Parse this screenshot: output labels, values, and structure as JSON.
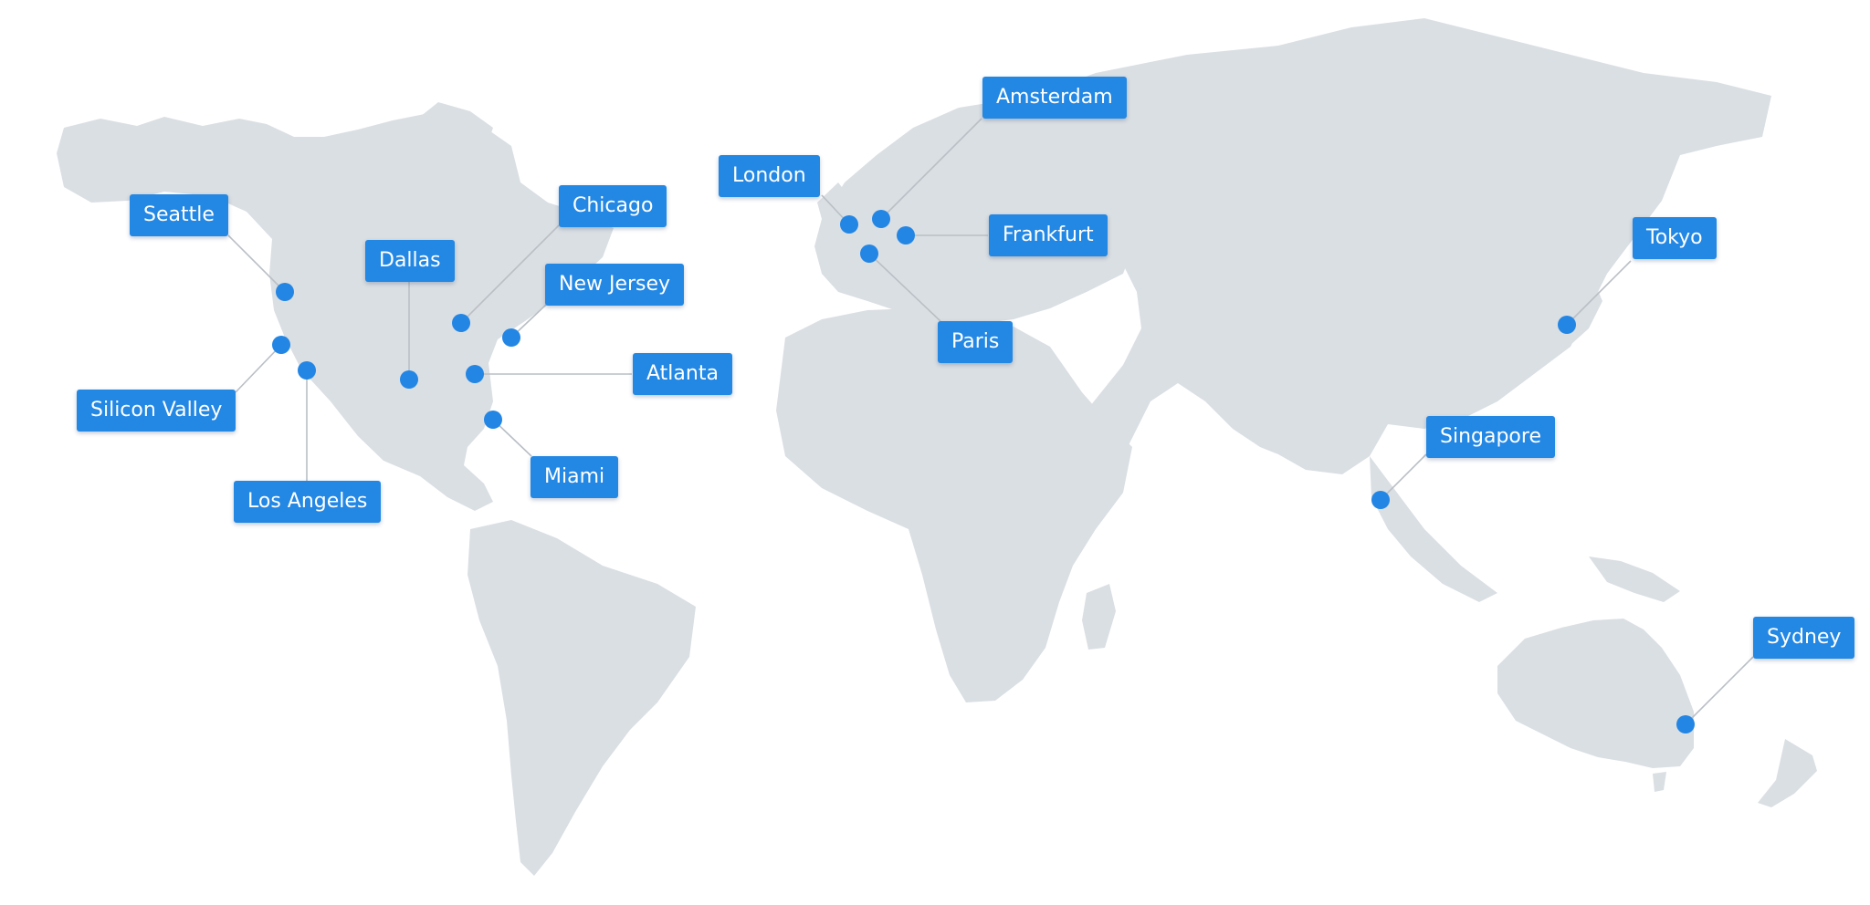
{
  "colors": {
    "land": "#dadfe3",
    "marker": "#2386e4",
    "label_background": "#2387e4",
    "label_text": "#ffffff",
    "leader_line": "#b9bfc5"
  },
  "locations": {
    "seattle": "Seattle",
    "silicon_valley": "Silicon Valley",
    "los_angeles": "Los Angeles",
    "dallas": "Dallas",
    "chicago": "Chicago",
    "new_jersey": "New Jersey",
    "atlanta": "Atlanta",
    "miami": "Miami",
    "london": "London",
    "amsterdam": "Amsterdam",
    "frankfurt": "Frankfurt",
    "paris": "Paris",
    "tokyo": "Tokyo",
    "singapore": "Singapore",
    "sydney": "Sydney"
  }
}
